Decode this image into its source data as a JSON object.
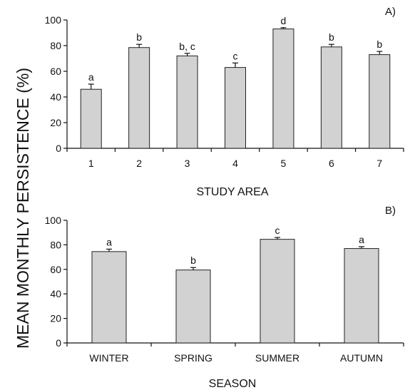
{
  "figure": {
    "ylabel": "MEAN MONTHLY PERSISTENCE (%)",
    "bar_color": "#d2d2d2"
  },
  "chart_data": [
    {
      "type": "bar",
      "panel_label": "A)",
      "xlabel": "STUDY AREA",
      "ylim": [
        0,
        100
      ],
      "yticks": [
        0,
        20,
        40,
        60,
        80,
        100
      ],
      "categories": [
        "1",
        "2",
        "3",
        "4",
        "5",
        "6",
        "7"
      ],
      "values": [
        46,
        78.5,
        72,
        63,
        93,
        79,
        73
      ],
      "errors": [
        4,
        2.5,
        2,
        3.5,
        1,
        2,
        2.5
      ],
      "significance_letters": [
        "a",
        "b",
        "b, c",
        "c",
        "d",
        "b",
        "b"
      ]
    },
    {
      "type": "bar",
      "panel_label": "B)",
      "xlabel": "SEASON",
      "ylim": [
        0,
        100
      ],
      "yticks": [
        0,
        20,
        40,
        60,
        80,
        100
      ],
      "categories": [
        "WINTER",
        "SPRING",
        "SUMMER",
        "AUTUMN"
      ],
      "values": [
        74.5,
        59.5,
        84.5,
        77
      ],
      "errors": [
        2,
        2,
        1.5,
        1.5
      ],
      "significance_letters": [
        "a",
        "b",
        "c",
        "a"
      ]
    }
  ]
}
